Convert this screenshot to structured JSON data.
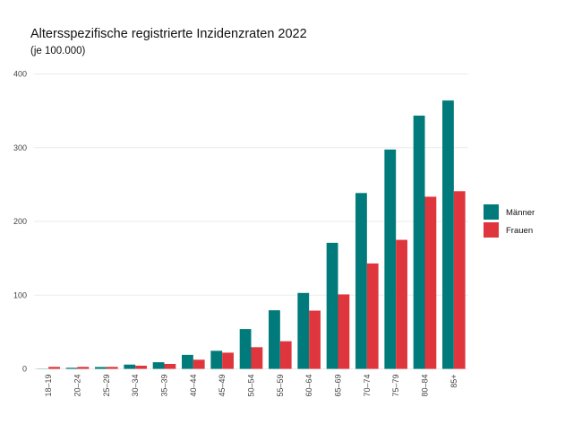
{
  "chart_data": {
    "type": "bar",
    "title": "Altersspezifische registrierte Inzidenzraten 2022",
    "subtitle": "(je 100.000)",
    "xlabel": "",
    "ylabel": "",
    "ylim": [
      0,
      400
    ],
    "yticks": [
      0,
      100,
      200,
      300,
      400
    ],
    "grid": true,
    "legend_position": "right",
    "categories": [
      "18–19",
      "20–24",
      "25–29",
      "30–34",
      "35–39",
      "40–44",
      "45–49",
      "50–54",
      "55–59",
      "60–64",
      "65–69",
      "70–74",
      "75–79",
      "80–84",
      "85+"
    ],
    "series": [
      {
        "name": "Männer",
        "color": "#007a7a",
        "values": [
          0.3,
          1.5,
          2.5,
          5.8,
          9,
          19,
          24.5,
          54,
          79.5,
          103,
          171,
          238.5,
          297.5,
          343.5,
          364
        ]
      },
      {
        "name": "Frauen",
        "color": "#df363e",
        "values": [
          2.7,
          2.7,
          2.7,
          4.3,
          6.7,
          12.4,
          22,
          29.4,
          37.5,
          79,
          101,
          143,
          175,
          233.5,
          241
        ]
      }
    ]
  }
}
